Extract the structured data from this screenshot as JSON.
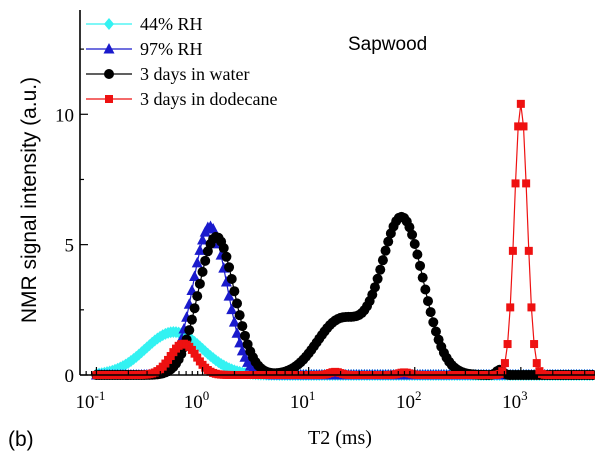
{
  "chart_data": {
    "type": "line",
    "xlabel": "T2 (ms)",
    "ylabel": "NMR signal intensity (a.u.)",
    "annotation": "Sapwood",
    "panel_label": "(b)",
    "xscale": "log",
    "xlim": [
      0.07,
      5000
    ],
    "ylim": [
      0,
      14
    ],
    "x_ticks": [
      {
        "value": 0.1,
        "base": "10",
        "exp": "-1"
      },
      {
        "value": 1,
        "base": "10",
        "exp": "0"
      },
      {
        "value": 10,
        "base": "10",
        "exp": "1"
      },
      {
        "value": 100,
        "base": "10",
        "exp": "2"
      },
      {
        "value": 1000,
        "base": "10",
        "exp": "3"
      }
    ],
    "y_ticks": [
      {
        "value": 0,
        "label": "0"
      },
      {
        "value": 5,
        "label": "5"
      },
      {
        "value": 10,
        "label": "10"
      }
    ],
    "legend_position": "top-left",
    "grid": false,
    "series": [
      {
        "name": "44% RH",
        "color": "#33f2f2",
        "marker": "diamond",
        "peaks": [
          {
            "center_log10": -0.27,
            "sigma": 0.27,
            "height": 1.65
          }
        ],
        "range_log10": [
          -1.0,
          3.7
        ]
      },
      {
        "name": "97% RH",
        "color": "#1a1acc",
        "marker": "triangle",
        "peaks": [
          {
            "center_log10": 0.07,
            "sigma": 0.16,
            "height": 5.7
          }
        ],
        "range_log10": [
          -1.0,
          3.7
        ]
      },
      {
        "name": "3 days in water",
        "color": "#000000",
        "marker": "circle",
        "peaks": [
          {
            "center_log10": 0.13,
            "sigma": 0.17,
            "height": 5.3
          },
          {
            "center_log10": 1.3,
            "sigma": 0.22,
            "height": 2.1
          },
          {
            "center_log10": 1.88,
            "sigma": 0.2,
            "height": 6.0
          },
          {
            "center_log10": 2.8,
            "sigma": 0.03,
            "height": 0.2
          }
        ],
        "range_log10": [
          -1.0,
          3.7
        ]
      },
      {
        "name": "3 days in dodecane",
        "color": "#ee1111",
        "marker": "square",
        "peaks": [
          {
            "center_log10": -0.18,
            "sigma": 0.12,
            "height": 1.2
          },
          {
            "center_log10": 1.25,
            "sigma": 0.05,
            "height": 0.12
          },
          {
            "center_log10": 1.9,
            "sigma": 0.05,
            "height": 0.1
          },
          {
            "center_log10": 3.0,
            "sigma": 0.06,
            "height": 10.4
          }
        ],
        "range_log10": [
          -1.0,
          3.7
        ]
      }
    ]
  }
}
